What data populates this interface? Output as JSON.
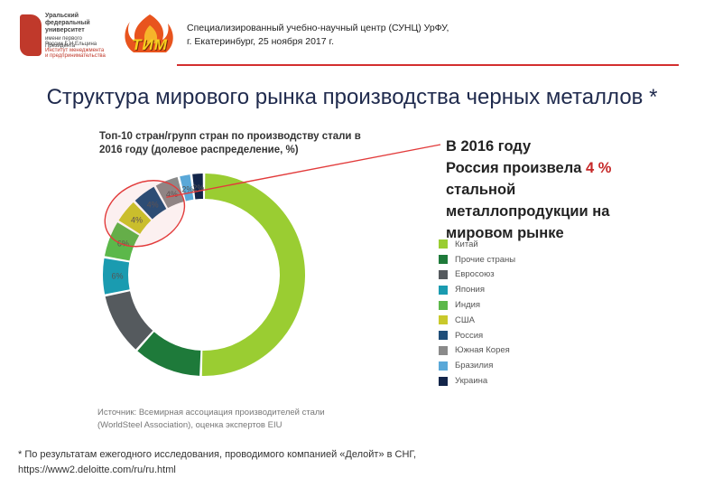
{
  "header": {
    "urfu_logo_text": [
      "Уральский",
      "федеральный",
      "университет",
      "имени первого Президента",
      "России Б.Н.Ельцина",
      "Институт менеджмента",
      "и предпринимательства"
    ],
    "tim_logo_text": "ТИМ",
    "org_line": "Специализированный учебно-научный центр (СУНЦ) УрФУ,",
    "date_line": "г. Екатеринбург, 25 ноября 2017 г."
  },
  "title": "Структура мирового рынка производства черных металлов *",
  "callout": {
    "line1": "В 2016 году",
    "line2_prefix": "Россия произвела ",
    "line2_value": "4 %",
    "line3": "стальной",
    "line4": "металлопродукции на",
    "line5": "мировом рынке"
  },
  "chart_data": {
    "type": "pie",
    "donut": true,
    "title": "Топ-10 стран/групп стран по производству стали в 2016 году (долевое распределение, %)",
    "categories": [
      "Китай",
      "Прочие страны",
      "Евросоюз",
      "Япония",
      "Индия",
      "США",
      "Россия",
      "Южная Корея",
      "Бразилия",
      "Украина"
    ],
    "values": [
      50,
      11,
      10,
      6,
      6,
      4,
      4,
      4,
      2,
      2
    ],
    "data_labels": [
      "50%",
      "11%",
      "10%",
      "6%",
      "6%",
      "4%",
      "4%",
      "4%",
      "2%",
      "2%"
    ],
    "colors": [
      "#9acd32",
      "#1e7a3a",
      "#555a5e",
      "#1a9bb0",
      "#5cb84a",
      "#c9c92b",
      "#1f4e79",
      "#8a8a8a",
      "#5aa8d8",
      "#13254a"
    ],
    "legend_position": "right",
    "highlight": "Россия"
  },
  "source_note": "Источник: Всемирная ассоциация производителей стали (WorldSteel Association), оценка экспертов EIU",
  "footnote": "* По результатам ежегодного исследования, проводимого компанией «Делойт» в СНГ, https://www2.deloitte.com/ru/ru.html",
  "colors": {
    "accent_red": "#d32f2f",
    "title_navy": "#1f2a4d"
  }
}
